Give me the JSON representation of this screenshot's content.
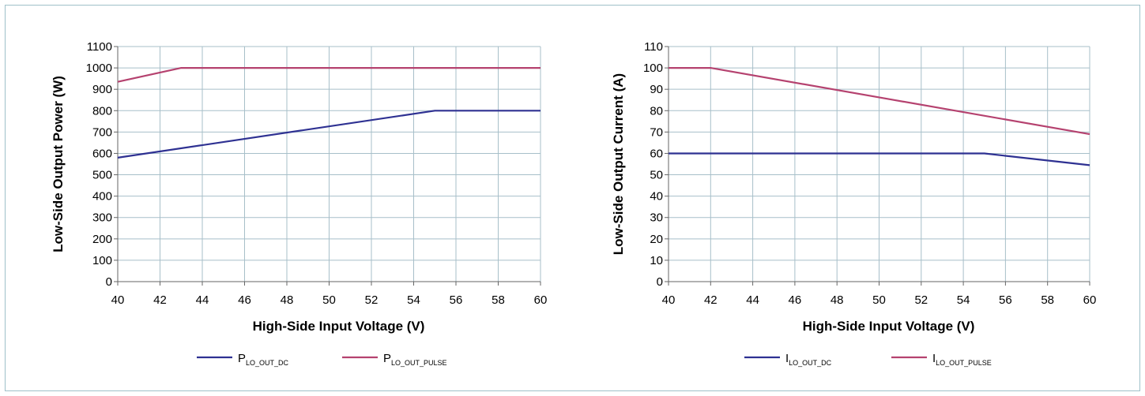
{
  "chart_data": [
    {
      "type": "line",
      "title": "",
      "xlabel": "High-Side Input Voltage (V)",
      "ylabel": "Low-Side Output Power (W)",
      "xlim": [
        40,
        60
      ],
      "ylim": [
        0,
        1100
      ],
      "x_ticks": [
        "40",
        "42",
        "44",
        "46",
        "48",
        "50",
        "52",
        "54",
        "56",
        "58",
        "60"
      ],
      "y_ticks": [
        "0",
        "100",
        "200",
        "300",
        "400",
        "500",
        "600",
        "700",
        "800",
        "900",
        "1000",
        "1100"
      ],
      "grid": true,
      "legend_position": "bottom",
      "series": [
        {
          "name": "P",
          "name_sub": "LO_OUT_DC",
          "color": "#2e3192",
          "points": [
            [
              40,
              580
            ],
            [
              55,
              800
            ],
            [
              60,
              800
            ]
          ]
        },
        {
          "name": "P",
          "name_sub": "LO_OUT_PULSE",
          "color": "#b5426f",
          "points": [
            [
              40,
              935
            ],
            [
              43,
              1000
            ],
            [
              60,
              1000
            ]
          ]
        }
      ]
    },
    {
      "type": "line",
      "title": "",
      "xlabel": "High-Side Input Voltage (V)",
      "ylabel": "Low-Side Output Current (A)",
      "xlim": [
        40,
        60
      ],
      "ylim": [
        0,
        110
      ],
      "x_ticks": [
        "40",
        "42",
        "44",
        "46",
        "48",
        "50",
        "52",
        "54",
        "56",
        "58",
        "60"
      ],
      "y_ticks": [
        "0",
        "10",
        "20",
        "30",
        "40",
        "50",
        "60",
        "70",
        "80",
        "90",
        "100",
        "110"
      ],
      "grid": true,
      "legend_position": "bottom",
      "series": [
        {
          "name": "I",
          "name_sub": "LO_OUT_DC",
          "color": "#2e3192",
          "points": [
            [
              40,
              60
            ],
            [
              55,
              60
            ],
            [
              60,
              54.5
            ]
          ]
        },
        {
          "name": "I",
          "name_sub": "LO_OUT_PULSE",
          "color": "#b5426f",
          "points": [
            [
              40,
              100
            ],
            [
              42,
              100
            ],
            [
              60,
              69
            ]
          ]
        }
      ]
    }
  ]
}
